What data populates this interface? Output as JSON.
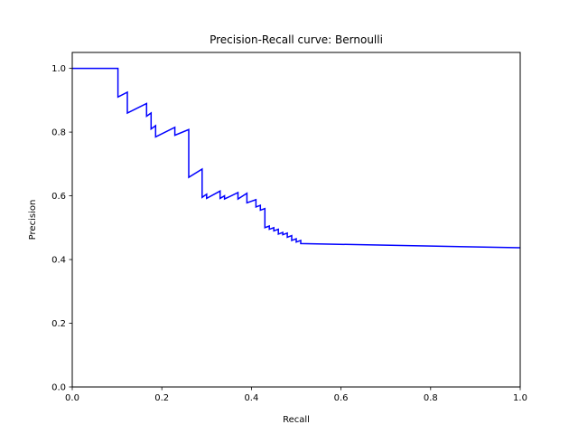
{
  "chart_data": {
    "type": "line",
    "title": "Precision-Recall curve: Bernoulli",
    "xlabel": "Recall",
    "ylabel": "Precision",
    "xlim": [
      0.0,
      1.0
    ],
    "ylim": [
      0.0,
      1.05
    ],
    "x_ticks": [
      0.0,
      0.2,
      0.4,
      0.6,
      0.8,
      1.0
    ],
    "x_tick_labels": [
      "0.0",
      "0.2",
      "0.4",
      "0.6",
      "0.8",
      "1.0"
    ],
    "y_ticks": [
      0.0,
      0.2,
      0.4,
      0.6,
      0.8,
      1.0
    ],
    "y_tick_labels": [
      "0.0",
      "0.2",
      "0.4",
      "0.6",
      "0.8",
      "1.0"
    ],
    "grid": false,
    "legend": false,
    "series": [
      {
        "color": "#0000ff",
        "x": [
          0.0,
          0.102,
          0.102,
          0.123,
          0.123,
          0.166,
          0.166,
          0.176,
          0.176,
          0.186,
          0.186,
          0.229,
          0.229,
          0.26,
          0.26,
          0.29,
          0.29,
          0.3,
          0.3,
          0.33,
          0.33,
          0.34,
          0.34,
          0.37,
          0.37,
          0.39,
          0.39,
          0.41,
          0.41,
          0.42,
          0.42,
          0.43,
          0.43,
          0.44,
          0.44,
          0.45,
          0.45,
          0.46,
          0.46,
          0.47,
          0.47,
          0.48,
          0.48,
          0.49,
          0.49,
          0.5,
          0.5,
          0.51,
          0.51,
          1.0
        ],
        "y": [
          1.0,
          1.0,
          0.91,
          0.925,
          0.86,
          0.89,
          0.85,
          0.86,
          0.81,
          0.82,
          0.785,
          0.815,
          0.79,
          0.808,
          0.658,
          0.684,
          0.595,
          0.605,
          0.592,
          0.615,
          0.592,
          0.6,
          0.59,
          0.61,
          0.59,
          0.608,
          0.578,
          0.588,
          0.565,
          0.57,
          0.555,
          0.56,
          0.5,
          0.505,
          0.495,
          0.5,
          0.49,
          0.495,
          0.48,
          0.485,
          0.478,
          0.483,
          0.47,
          0.475,
          0.46,
          0.465,
          0.455,
          0.46,
          0.45,
          0.437
        ]
      }
    ]
  }
}
